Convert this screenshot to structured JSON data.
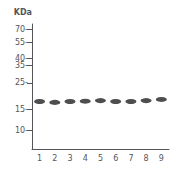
{
  "chart_data": {
    "type": "scatter",
    "ylabel": "KDa",
    "categories": [
      "1",
      "2",
      "3",
      "4",
      "5",
      "6",
      "7",
      "8",
      "9"
    ],
    "values": [
      17.5,
      17.2,
      17.5,
      17.6,
      17.8,
      17.5,
      17.5,
      17.8,
      18.2
    ],
    "color": "#222222",
    "marker": "ellipse",
    "log": "y",
    "ylim": [
      7,
      78
    ],
    "yticks": [
      {
        "value": 10,
        "label": "10-"
      },
      {
        "value": 15,
        "label": "15-"
      },
      {
        "value": 25,
        "label": "25-"
      },
      {
        "value": 35,
        "label": "35-"
      },
      {
        "value": 40,
        "label": "40-"
      },
      {
        "value": 55,
        "label": "55-"
      },
      {
        "value": 70,
        "label": "70-"
      }
    ],
    "grid": false
  }
}
